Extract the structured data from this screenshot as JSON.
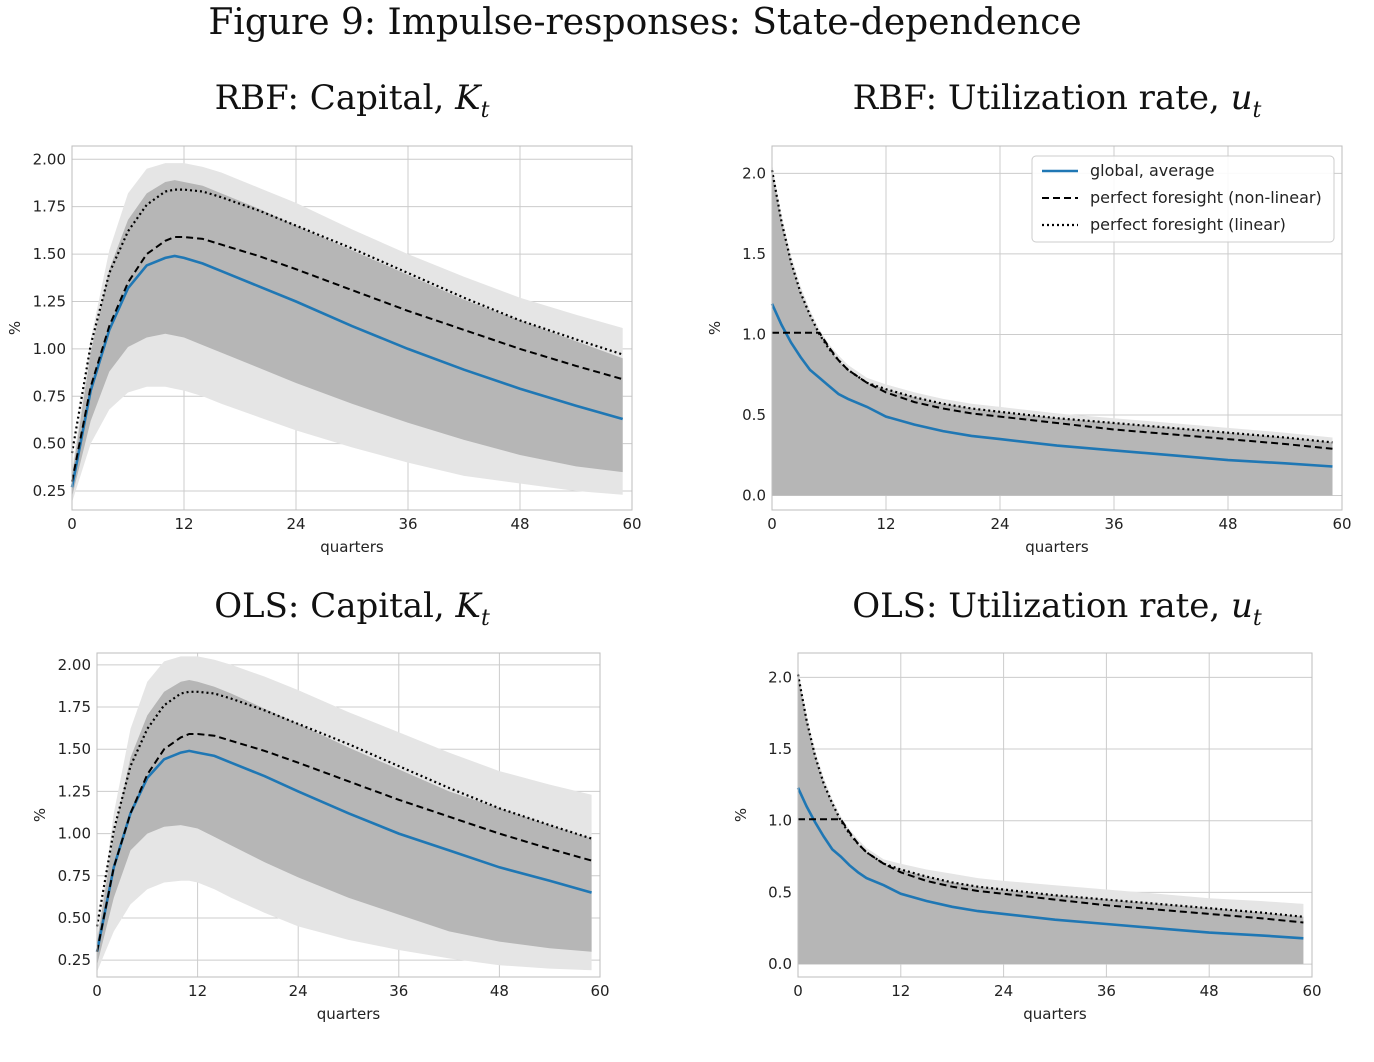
{
  "figure_title": "Figure 9: Impulse-responses: State-dependence",
  "panels": [
    {
      "prefix": "RBF: Capital, ",
      "symbol": "K",
      "sub": "t"
    },
    {
      "prefix": "RBF: Utilization rate, ",
      "symbol": "u",
      "sub": "t"
    },
    {
      "prefix": "OLS: Capital, ",
      "symbol": "K",
      "sub": "t"
    },
    {
      "prefix": "OLS: Utilization rate, ",
      "symbol": "u",
      "sub": "t"
    }
  ],
  "colors": {
    "global": "#1f77b4",
    "band_outer": "#e5e5e5",
    "band_inner": "#b6b6b6",
    "grid": "#cccccc",
    "frame": "#bdbdbd",
    "pf": "#000000"
  },
  "chart_data": [
    {
      "type": "line",
      "title": "RBF: Capital, K_t",
      "xlabel": "quarters",
      "ylabel": "%",
      "xlim": [
        0,
        60
      ],
      "ylim": [
        0.15,
        2.07
      ],
      "grid": true,
      "x_ticks": [
        0,
        12,
        24,
        36,
        48,
        60
      ],
      "y_ticks": [
        0.25,
        0.5,
        0.75,
        1.0,
        1.25,
        1.5,
        1.75,
        2.0
      ],
      "y_tick_labels": [
        "0.25",
        "0.50",
        "0.75",
        "1.00",
        "1.25",
        "1.50",
        "1.75",
        "2.00"
      ],
      "x": [
        0,
        2,
        4,
        6,
        8,
        10,
        11,
        12,
        14,
        16,
        20,
        24,
        30,
        36,
        42,
        48,
        54,
        59
      ],
      "series": [
        {
          "name": "global, average",
          "style": "solid",
          "values": [
            0.27,
            0.78,
            1.1,
            1.32,
            1.44,
            1.48,
            1.49,
            1.48,
            1.45,
            1.41,
            1.33,
            1.25,
            1.12,
            1.0,
            0.89,
            0.79,
            0.7,
            0.63
          ]
        },
        {
          "name": "perfect foresight (non-linear)",
          "style": "dashed",
          "values": [
            0.3,
            0.8,
            1.12,
            1.35,
            1.5,
            1.57,
            1.59,
            1.59,
            1.58,
            1.55,
            1.49,
            1.42,
            1.31,
            1.2,
            1.1,
            1.0,
            0.91,
            0.84
          ]
        },
        {
          "name": "perfect foresight (linear)",
          "style": "dotted",
          "values": [
            0.45,
            1.02,
            1.4,
            1.62,
            1.76,
            1.83,
            1.84,
            1.84,
            1.83,
            1.8,
            1.73,
            1.65,
            1.53,
            1.4,
            1.27,
            1.15,
            1.05,
            0.97
          ]
        }
      ],
      "band_outer": {
        "lower": [
          0.19,
          0.5,
          0.68,
          0.77,
          0.8,
          0.8,
          0.79,
          0.78,
          0.75,
          0.71,
          0.64,
          0.57,
          0.48,
          0.4,
          0.33,
          0.29,
          0.25,
          0.23
        ],
        "upper": [
          0.36,
          1.05,
          1.52,
          1.82,
          1.95,
          1.98,
          1.98,
          1.98,
          1.96,
          1.93,
          1.85,
          1.77,
          1.63,
          1.5,
          1.38,
          1.27,
          1.18,
          1.11
        ]
      },
      "band_inner": {
        "lower": [
          0.22,
          0.62,
          0.88,
          1.01,
          1.06,
          1.08,
          1.07,
          1.06,
          1.02,
          0.98,
          0.9,
          0.82,
          0.71,
          0.61,
          0.52,
          0.44,
          0.38,
          0.35
        ],
        "upper": [
          0.33,
          0.98,
          1.42,
          1.68,
          1.82,
          1.88,
          1.89,
          1.88,
          1.86,
          1.82,
          1.74,
          1.65,
          1.52,
          1.39,
          1.26,
          1.15,
          1.04,
          0.95
        ]
      }
    },
    {
      "type": "line",
      "title": "RBF: Utilization rate, u_t",
      "xlabel": "quarters",
      "ylabel": "%",
      "xlim": [
        0,
        60
      ],
      "ylim": [
        -0.09,
        2.17
      ],
      "grid": true,
      "legend": "top-right",
      "x_ticks": [
        0,
        12,
        24,
        36,
        48,
        60
      ],
      "y_ticks": [
        0.0,
        0.5,
        1.0,
        1.5,
        2.0
      ],
      "y_tick_labels": [
        "0.0",
        "0.5",
        "1.0",
        "1.5",
        "2.0"
      ],
      "x": [
        0,
        1,
        2,
        3,
        4,
        5,
        6,
        7,
        8,
        10,
        12,
        15,
        18,
        21,
        24,
        30,
        36,
        42,
        48,
        54,
        59
      ],
      "series": [
        {
          "name": "global, average",
          "style": "solid",
          "values": [
            1.19,
            1.06,
            0.95,
            0.86,
            0.78,
            0.73,
            0.68,
            0.63,
            0.6,
            0.55,
            0.49,
            0.44,
            0.4,
            0.37,
            0.35,
            0.31,
            0.28,
            0.25,
            0.22,
            0.2,
            0.18
          ]
        },
        {
          "name": "perfect foresight (non-linear)",
          "style": "dashed",
          "values": [
            1.01,
            1.01,
            1.01,
            1.01,
            1.01,
            1.01,
            0.92,
            0.84,
            0.78,
            0.7,
            0.64,
            0.58,
            0.54,
            0.51,
            0.49,
            0.45,
            0.41,
            0.38,
            0.35,
            0.32,
            0.29
          ]
        },
        {
          "name": "perfect foresight (linear)",
          "style": "dotted",
          "values": [
            2.02,
            1.7,
            1.45,
            1.26,
            1.12,
            1.0,
            0.91,
            0.84,
            0.78,
            0.7,
            0.66,
            0.61,
            0.57,
            0.54,
            0.52,
            0.48,
            0.45,
            0.42,
            0.39,
            0.36,
            0.33
          ]
        }
      ],
      "band_outer": {
        "lower": [
          0.0,
          0.0,
          0.0,
          0.0,
          0.0,
          0.0,
          0.0,
          0.0,
          0.0,
          0.0,
          0.0,
          0.0,
          0.0,
          0.0,
          0.0,
          0.0,
          0.0,
          0.0,
          0.0,
          0.0,
          0.0
        ],
        "upper": [
          2.06,
          1.74,
          1.49,
          1.3,
          1.15,
          1.03,
          0.94,
          0.87,
          0.81,
          0.73,
          0.69,
          0.64,
          0.6,
          0.57,
          0.55,
          0.51,
          0.48,
          0.45,
          0.42,
          0.39,
          0.36
        ]
      },
      "band_inner": {
        "lower": [
          0.0,
          0.0,
          0.0,
          0.0,
          0.0,
          0.0,
          0.0,
          0.0,
          0.0,
          0.0,
          0.0,
          0.0,
          0.0,
          0.0,
          0.0,
          0.0,
          0.0,
          0.0,
          0.0,
          0.0,
          0.0
        ],
        "upper": [
          2.02,
          1.7,
          1.45,
          1.26,
          1.12,
          1.0,
          0.91,
          0.84,
          0.78,
          0.7,
          0.66,
          0.61,
          0.57,
          0.54,
          0.52,
          0.48,
          0.45,
          0.42,
          0.39,
          0.36,
          0.33
        ]
      }
    },
    {
      "type": "line",
      "title": "OLS: Capital, K_t",
      "xlabel": "quarters",
      "ylabel": "%",
      "xlim": [
        0,
        60
      ],
      "ylim": [
        0.15,
        2.07
      ],
      "grid": true,
      "x_ticks": [
        0,
        12,
        24,
        36,
        48,
        60
      ],
      "y_ticks": [
        0.25,
        0.5,
        0.75,
        1.0,
        1.25,
        1.5,
        1.75,
        2.0
      ],
      "y_tick_labels": [
        "0.25",
        "0.50",
        "0.75",
        "1.00",
        "1.25",
        "1.50",
        "1.75",
        "2.00"
      ],
      "x": [
        0,
        2,
        4,
        6,
        8,
        10,
        11,
        12,
        14,
        16,
        20,
        24,
        30,
        36,
        42,
        48,
        54,
        59
      ],
      "series": [
        {
          "name": "global, average",
          "style": "solid",
          "values": [
            0.3,
            0.8,
            1.12,
            1.33,
            1.44,
            1.48,
            1.49,
            1.48,
            1.46,
            1.42,
            1.34,
            1.25,
            1.12,
            1.0,
            0.9,
            0.8,
            0.72,
            0.65
          ]
        },
        {
          "name": "perfect foresight (non-linear)",
          "style": "dashed",
          "values": [
            0.3,
            0.8,
            1.12,
            1.35,
            1.5,
            1.57,
            1.59,
            1.59,
            1.58,
            1.55,
            1.49,
            1.42,
            1.31,
            1.2,
            1.1,
            1.0,
            0.91,
            0.84
          ]
        },
        {
          "name": "perfect foresight (linear)",
          "style": "dotted",
          "values": [
            0.45,
            1.02,
            1.4,
            1.62,
            1.76,
            1.83,
            1.84,
            1.84,
            1.83,
            1.8,
            1.73,
            1.65,
            1.53,
            1.4,
            1.27,
            1.15,
            1.05,
            0.97
          ]
        }
      ],
      "band_outer": {
        "lower": [
          0.18,
          0.42,
          0.58,
          0.67,
          0.71,
          0.72,
          0.72,
          0.71,
          0.67,
          0.62,
          0.53,
          0.45,
          0.37,
          0.31,
          0.26,
          0.22,
          0.2,
          0.19
        ],
        "upper": [
          0.38,
          1.12,
          1.62,
          1.9,
          2.02,
          2.05,
          2.05,
          2.05,
          2.03,
          2.0,
          1.93,
          1.85,
          1.72,
          1.6,
          1.48,
          1.37,
          1.29,
          1.23
        ]
      },
      "band_inner": {
        "lower": [
          0.22,
          0.62,
          0.9,
          1.0,
          1.04,
          1.05,
          1.04,
          1.03,
          0.98,
          0.93,
          0.83,
          0.74,
          0.62,
          0.52,
          0.42,
          0.36,
          0.32,
          0.3
        ]
      },
      "band_inner_upper": [
        0.35,
        1.0,
        1.45,
        1.7,
        1.84,
        1.9,
        1.91,
        1.9,
        1.87,
        1.83,
        1.74,
        1.65,
        1.51,
        1.38,
        1.25,
        1.15,
        1.05,
        0.97
      ]
    },
    {
      "type": "line",
      "title": "OLS: Utilization rate, u_t",
      "xlabel": "quarters",
      "ylabel": "%",
      "xlim": [
        0,
        60
      ],
      "ylim": [
        -0.09,
        2.17
      ],
      "grid": true,
      "x_ticks": [
        0,
        12,
        24,
        36,
        48,
        60
      ],
      "y_ticks": [
        0.0,
        0.5,
        1.0,
        1.5,
        2.0
      ],
      "y_tick_labels": [
        "0.0",
        "0.5",
        "1.0",
        "1.5",
        "2.0"
      ],
      "x": [
        0,
        1,
        2,
        3,
        4,
        5,
        6,
        7,
        8,
        10,
        12,
        15,
        18,
        21,
        24,
        30,
        36,
        42,
        48,
        54,
        59
      ],
      "series": [
        {
          "name": "global, average",
          "style": "solid",
          "values": [
            1.23,
            1.1,
            0.99,
            0.89,
            0.8,
            0.75,
            0.69,
            0.64,
            0.6,
            0.55,
            0.49,
            0.44,
            0.4,
            0.37,
            0.35,
            0.31,
            0.28,
            0.25,
            0.22,
            0.2,
            0.18
          ]
        },
        {
          "name": "perfect foresight (non-linear)",
          "style": "dashed",
          "values": [
            1.01,
            1.01,
            1.01,
            1.01,
            1.01,
            1.01,
            0.92,
            0.84,
            0.78,
            0.7,
            0.64,
            0.58,
            0.54,
            0.51,
            0.49,
            0.45,
            0.41,
            0.38,
            0.35,
            0.32,
            0.29
          ]
        },
        {
          "name": "perfect foresight (linear)",
          "style": "dotted",
          "values": [
            2.02,
            1.7,
            1.45,
            1.26,
            1.12,
            1.0,
            0.91,
            0.84,
            0.78,
            0.7,
            0.66,
            0.61,
            0.57,
            0.54,
            0.52,
            0.48,
            0.45,
            0.42,
            0.39,
            0.36,
            0.33
          ]
        }
      ],
      "band_outer": {
        "lower": [
          0.0,
          0.0,
          0.0,
          0.0,
          0.0,
          0.0,
          0.0,
          0.0,
          0.0,
          0.0,
          0.0,
          0.0,
          0.0,
          0.0,
          0.0,
          0.0,
          0.0,
          0.0,
          0.0,
          0.0,
          0.0
        ],
        "upper": [
          2.06,
          1.74,
          1.49,
          1.3,
          1.15,
          1.03,
          0.94,
          0.87,
          0.81,
          0.73,
          0.7,
          0.66,
          0.63,
          0.6,
          0.58,
          0.55,
          0.52,
          0.49,
          0.46,
          0.44,
          0.42
        ]
      },
      "band_inner": {
        "lower": [
          0.0,
          0.0,
          0.0,
          0.0,
          0.0,
          0.0,
          0.0,
          0.0,
          0.0,
          0.0,
          0.0,
          0.0,
          0.0,
          0.0,
          0.0,
          0.0,
          0.0,
          0.0,
          0.0,
          0.0,
          0.0
        ],
        "upper": [
          2.02,
          1.7,
          1.45,
          1.26,
          1.12,
          1.0,
          0.91,
          0.84,
          0.78,
          0.7,
          0.66,
          0.61,
          0.57,
          0.54,
          0.52,
          0.48,
          0.45,
          0.42,
          0.39,
          0.36,
          0.33
        ]
      }
    }
  ]
}
